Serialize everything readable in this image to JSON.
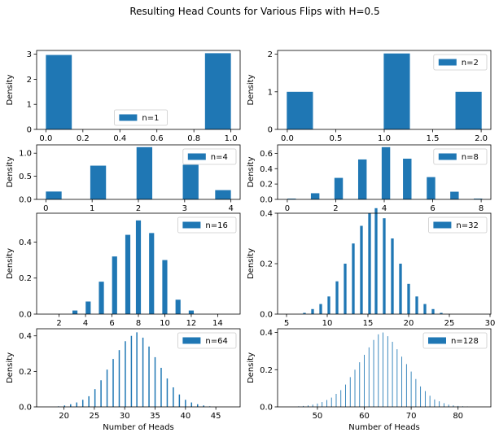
{
  "figure": {
    "title": "Resulting Head Counts for Various Flips with H=0.5",
    "bar_color": "#1f77b4"
  },
  "chart_data": [
    {
      "type": "bar",
      "legend": "n=1",
      "legend_loc": "lower-center",
      "ylabel": "Density",
      "xlabel": "",
      "xlim": [
        -0.05,
        1.05
      ],
      "ylim": [
        0,
        3.15
      ],
      "xticks": [
        0.0,
        0.2,
        0.4,
        0.6,
        0.8,
        1.0
      ],
      "xtick_labels": [
        "0.0",
        "0.2",
        "0.4",
        "0.6",
        "0.8",
        "1.0"
      ],
      "yticks": [
        0,
        1,
        2,
        3
      ],
      "ytick_labels": [
        "0",
        "1",
        "2",
        "3"
      ],
      "bar_width": 0.14,
      "x": [
        0.07,
        0.93
      ],
      "values": [
        2.97,
        3.04
      ]
    },
    {
      "type": "bar",
      "legend": "n=2",
      "legend_loc": "top-right",
      "ylabel": "Density",
      "xlabel": "",
      "xlim": [
        -0.1,
        2.1
      ],
      "ylim": [
        0,
        2.1
      ],
      "xticks": [
        0.0,
        0.5,
        1.0,
        1.5,
        2.0
      ],
      "xtick_labels": [
        "0.0",
        "0.5",
        "1.0",
        "1.5",
        "2.0"
      ],
      "yticks": [
        0,
        1,
        2
      ],
      "ytick_labels": [
        "0",
        "1",
        "2"
      ],
      "bar_width": 0.27,
      "x": [
        0.13,
        1.13,
        1.87
      ],
      "values": [
        1.0,
        2.02,
        1.0
      ]
    },
    {
      "type": "bar",
      "legend": "n=4",
      "legend_loc": "top-right",
      "ylabel": "Density",
      "xlabel": "",
      "xlim": [
        -0.2,
        4.2
      ],
      "ylim": [
        0,
        1.18
      ],
      "xticks": [
        0,
        1,
        2,
        3,
        4
      ],
      "xtick_labels": [
        "0",
        "1",
        "2",
        "3",
        "4"
      ],
      "yticks": [
        0.0,
        0.5,
        1.0
      ],
      "ytick_labels": [
        "0.0",
        "0.5",
        "1.0"
      ],
      "bar_width": 0.34,
      "x": [
        0.17,
        1.13,
        2.13,
        3.13,
        3.83
      ],
      "values": [
        0.17,
        0.73,
        1.13,
        0.75,
        0.2
      ]
    },
    {
      "type": "bar",
      "legend": "n=8",
      "legend_loc": "top-right",
      "ylabel": "Density",
      "xlabel": "",
      "xlim": [
        -0.4,
        8.4
      ],
      "ylim": [
        0,
        0.71
      ],
      "xticks": [
        0,
        2,
        4,
        6,
        8
      ],
      "xtick_labels": [
        "0",
        "2",
        "4",
        "6",
        "8"
      ],
      "yticks": [
        0.0,
        0.2,
        0.4,
        0.6
      ],
      "ytick_labels": [
        "0.0",
        "0.2",
        "0.4",
        "0.6"
      ],
      "bar_width": 0.35,
      "x": [
        0.18,
        1.15,
        2.12,
        3.1,
        4.07,
        4.95,
        5.93,
        6.9,
        7.87
      ],
      "values": [
        0.01,
        0.08,
        0.28,
        0.52,
        0.68,
        0.53,
        0.29,
        0.1,
        0.01
      ]
    },
    {
      "type": "bar",
      "legend": "n=16",
      "legend_loc": "top-right",
      "ylabel": "Density",
      "xlabel": "",
      "xlim": [
        0.3,
        15.7
      ],
      "ylim": [
        0,
        0.56
      ],
      "xticks": [
        2,
        4,
        6,
        8,
        10,
        12,
        14
      ],
      "xtick_labels": [
        "2",
        "4",
        "6",
        "8",
        "10",
        "12",
        "14"
      ],
      "yticks": [
        0.0,
        0.2,
        0.4
      ],
      "ytick_labels": [
        "0.0",
        "0.2",
        "0.4"
      ],
      "bar_width": 0.38,
      "x": [
        3.2,
        4.2,
        5.2,
        6.2,
        7.2,
        8.0,
        9.0,
        10.0,
        11.0,
        12.0
      ],
      "values": [
        0.02,
        0.07,
        0.18,
        0.32,
        0.44,
        0.52,
        0.45,
        0.3,
        0.08,
        0.02
      ]
    },
    {
      "type": "bar",
      "legend": "n=32",
      "legend_loc": "top-right",
      "ylabel": "Density",
      "xlabel": "",
      "xlim": [
        3.9,
        30.1
      ],
      "ylim": [
        0,
        0.4
      ],
      "xticks": [
        5,
        10,
        15,
        20,
        25,
        30
      ],
      "xtick_labels": [
        "5",
        "10",
        "15",
        "20",
        "25",
        "30"
      ],
      "yticks": [
        0.0,
        0.2,
        0.4
      ],
      "ytick_labels": [
        "0.0",
        "0.2",
        "0.4"
      ],
      "bar_width": 0.33,
      "x": [
        7.2,
        8.2,
        9.2,
        10.2,
        11.2,
        12.2,
        13.2,
        14.2,
        15.2,
        16.0,
        17.0,
        18.0,
        19.0,
        20.0,
        21.0,
        22.0,
        23.0,
        24.0
      ],
      "values": [
        0.005,
        0.02,
        0.04,
        0.07,
        0.13,
        0.2,
        0.28,
        0.35,
        0.4,
        0.42,
        0.38,
        0.3,
        0.2,
        0.12,
        0.07,
        0.04,
        0.02,
        0.005
      ]
    },
    {
      "type": "bar",
      "legend": "n=64",
      "legend_loc": "top-right",
      "ylabel": "Density",
      "xlabel": "Number of Heads",
      "xlim": [
        15.5,
        49.0
      ],
      "ylim": [
        0,
        0.44
      ],
      "xticks": [
        20,
        25,
        30,
        35,
        40,
        45
      ],
      "xtick_labels": [
        "20",
        "25",
        "30",
        "35",
        "40",
        "45"
      ],
      "yticks": [
        0.0,
        0.2,
        0.4
      ],
      "ytick_labels": [
        "0.0",
        "0.2",
        "0.4"
      ],
      "bar_width": 0.2,
      "x": [
        19.1,
        20.1,
        21.1,
        22.1,
        23.1,
        24.1,
        25.1,
        26.1,
        27.1,
        28.1,
        29.1,
        30.1,
        31.1,
        32.0,
        33.0,
        34.0,
        35.0,
        36.0,
        37.0,
        38.0,
        39.0,
        40.0,
        41.0,
        42.0,
        43.0,
        44.0
      ],
      "values": [
        0.003,
        0.008,
        0.015,
        0.025,
        0.04,
        0.06,
        0.1,
        0.15,
        0.21,
        0.27,
        0.32,
        0.37,
        0.4,
        0.42,
        0.39,
        0.34,
        0.28,
        0.22,
        0.16,
        0.11,
        0.07,
        0.04,
        0.025,
        0.015,
        0.008,
        0.003
      ]
    },
    {
      "type": "bar",
      "legend": "n=128",
      "legend_loc": "top-right",
      "ylabel": "Density",
      "xlabel": "Number of Heads",
      "xlim": [
        41.5,
        87.0
      ],
      "ylim": [
        0,
        0.42
      ],
      "xticks": [
        50,
        60,
        70,
        80
      ],
      "xtick_labels": [
        "50",
        "60",
        "70",
        "80"
      ],
      "yticks": [
        0.0,
        0.2,
        0.4
      ],
      "ytick_labels": [
        "0.0",
        "0.2",
        "0.4"
      ],
      "bar_width": 0.15,
      "x": [
        46,
        47,
        48,
        49,
        50,
        51,
        52,
        53,
        54,
        55,
        56,
        57,
        58,
        59,
        60,
        61,
        62,
        63,
        64,
        65,
        66,
        67,
        68,
        69,
        70,
        71,
        72,
        73,
        74,
        75,
        76,
        77,
        78,
        79,
        80,
        81,
        82
      ],
      "values": [
        0.003,
        0.005,
        0.008,
        0.012,
        0.018,
        0.026,
        0.037,
        0.05,
        0.07,
        0.09,
        0.12,
        0.16,
        0.2,
        0.24,
        0.28,
        0.32,
        0.36,
        0.39,
        0.4,
        0.38,
        0.35,
        0.31,
        0.27,
        0.23,
        0.19,
        0.15,
        0.11,
        0.085,
        0.06,
        0.04,
        0.03,
        0.02,
        0.012,
        0.008,
        0.005,
        0.003,
        0.002
      ]
    }
  ]
}
